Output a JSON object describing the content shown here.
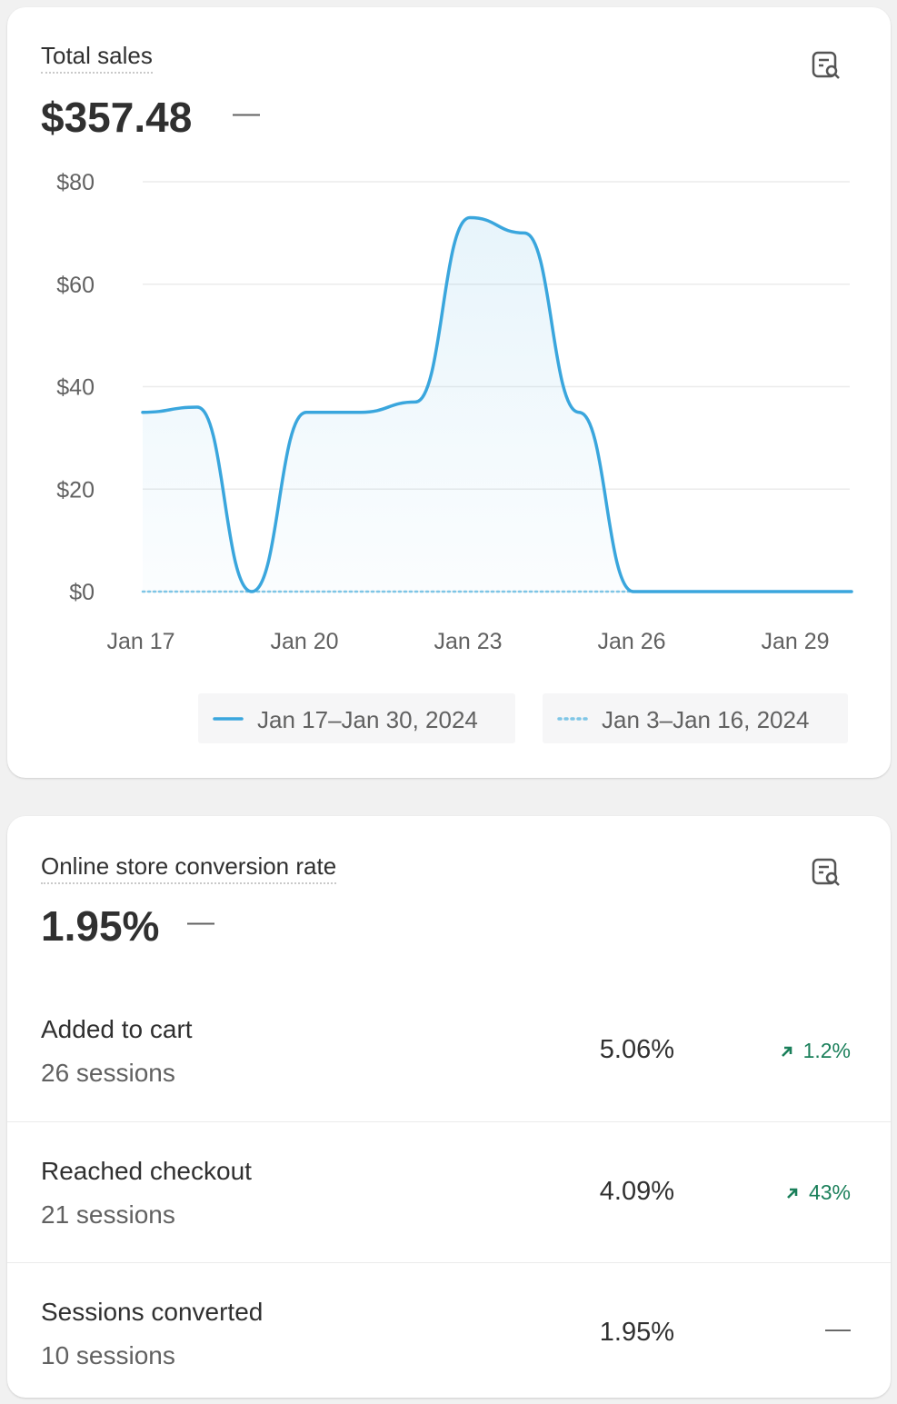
{
  "sales_card": {
    "title": "Total sales",
    "value": "$357.48",
    "comparison": "—"
  },
  "chart_data": {
    "type": "line",
    "categories": [
      "Jan 17",
      null,
      null,
      "Jan 20",
      null,
      null,
      "Jan 23",
      null,
      null,
      "Jan 26",
      null,
      null,
      "Jan 29",
      null
    ],
    "series": [
      {
        "name": "Jan 17–Jan 30, 2024",
        "color": "#3aa6dd",
        "style": "solid",
        "values": [
          35,
          36,
          0,
          35,
          35,
          37,
          73,
          70,
          35,
          0,
          0,
          0,
          0,
          0
        ]
      },
      {
        "name": "Jan 3–Jan 16, 2024",
        "color": "#7fc6e6",
        "style": "dotted",
        "values": [
          0,
          0,
          0,
          0,
          0,
          0,
          0,
          0,
          0,
          0,
          null,
          null,
          null,
          null
        ]
      }
    ],
    "ylim": [
      0,
      80
    ],
    "yticks": [
      {
        "value": 0,
        "label": "$0"
      },
      {
        "value": 20,
        "label": "$20"
      },
      {
        "value": 40,
        "label": "$40"
      },
      {
        "value": 60,
        "label": "$60"
      },
      {
        "value": 80,
        "label": "$80"
      }
    ],
    "grid": true
  },
  "conversion_card": {
    "title": "Online store conversion rate",
    "value": "1.95%",
    "comparison": "—",
    "rows": [
      {
        "label": "Added to cart",
        "sessions": "26 sessions",
        "rate": "5.06%",
        "change": "1.2%"
      },
      {
        "label": "Reached checkout",
        "sessions": "21 sessions",
        "rate": "4.09%",
        "change": "43%"
      },
      {
        "label": "Sessions converted",
        "sessions": "10 sessions",
        "rate": "1.95%",
        "change": "—"
      }
    ]
  }
}
